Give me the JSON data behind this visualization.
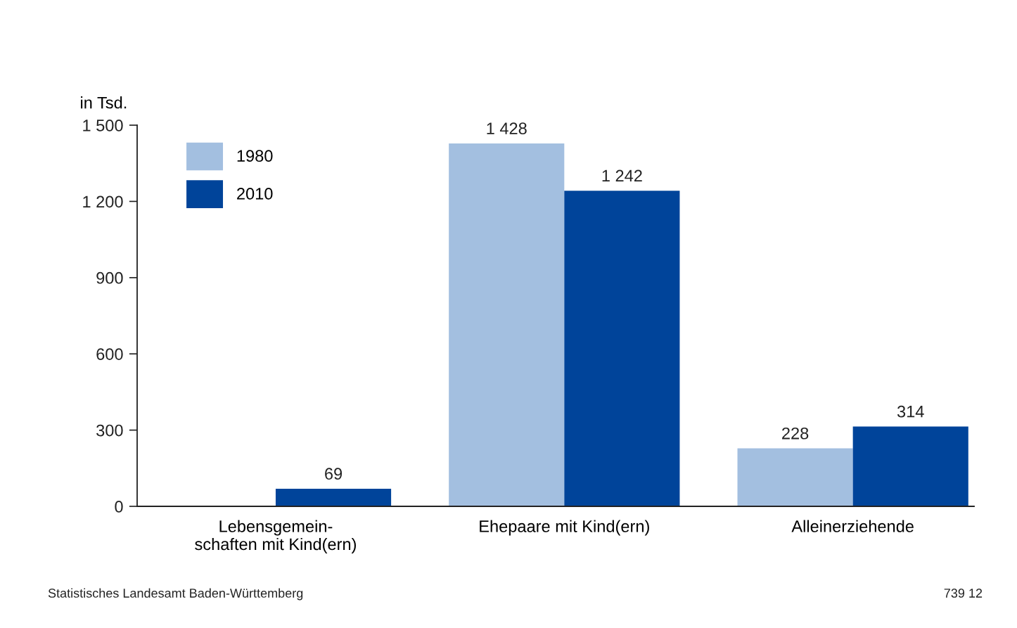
{
  "chart_data": {
    "type": "bar",
    "ylabel": "in Tsd.",
    "categories": [
      "Lebensgemein-\nschaften mit Kind(ern)",
      "Ehepaare mit Kind(ern)",
      "Alleinerziehende"
    ],
    "series": [
      {
        "name": "1980",
        "color": "#a3bfe0",
        "values": [
          null,
          1428,
          228
        ],
        "value_labels": [
          null,
          "1 428",
          "228"
        ]
      },
      {
        "name": "2010",
        "color": "#00449a",
        "values": [
          69,
          1242,
          314
        ],
        "value_labels": [
          "69",
          "1 242",
          "314"
        ]
      }
    ],
    "ylim": [
      0,
      1500
    ],
    "yticks": [
      0,
      300,
      600,
      900,
      {
        "value": 1200,
        "label": "1 200"
      },
      {
        "value": 1500,
        "label": "1 500"
      }
    ],
    "grid": false,
    "legend": "top left",
    "annotations": [
      "Statistisches Landesamt Baden-Württemberg",
      "739 12"
    ]
  }
}
